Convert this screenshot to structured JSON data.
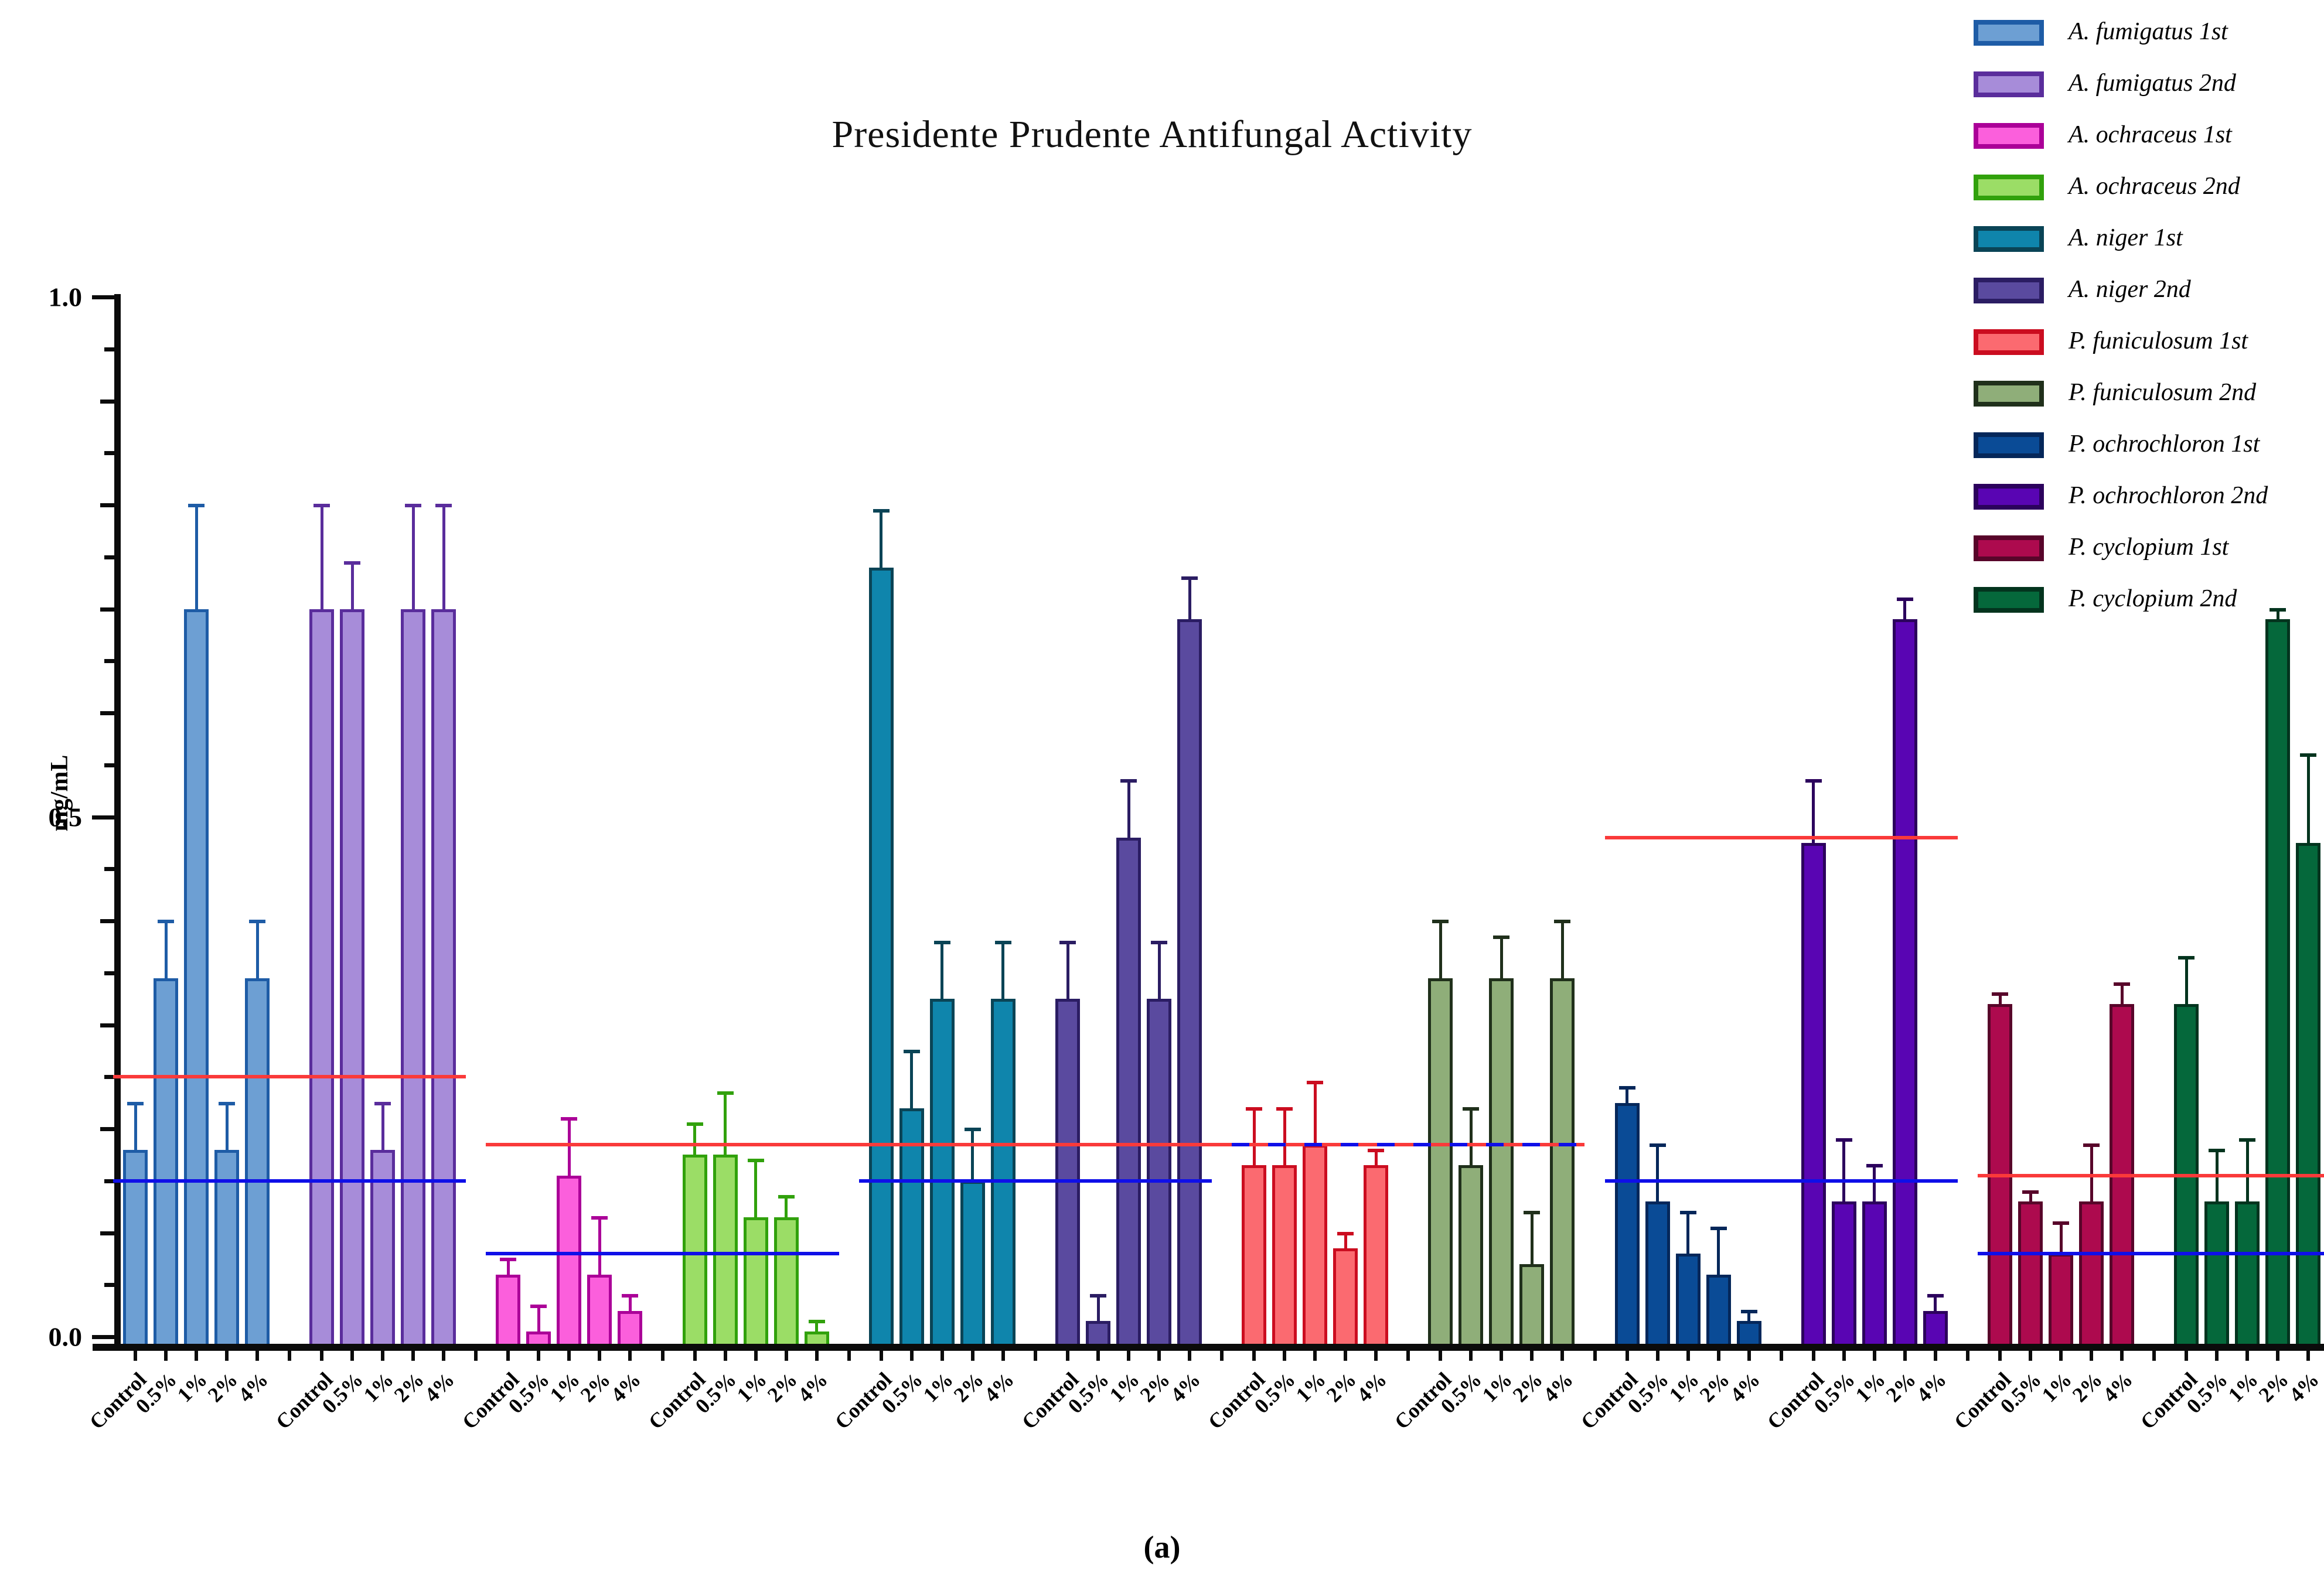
{
  "chart": {
    "title": "Presidente Prudente Antifungal Activity",
    "ylabel": "mg/mL",
    "caption": "(a)",
    "y_axis": {
      "min": 0.0,
      "max": 1.0,
      "major_tick_labels": [
        "0.0",
        "0.5",
        "1.0"
      ],
      "minor_step": 0.05
    }
  },
  "chart_data": {
    "type": "bar",
    "title": "Presidente Prudente Antifungal Activity",
    "xlabel": "",
    "ylabel": "mg/mL",
    "ylim": [
      0.0,
      1.0
    ],
    "grid": false,
    "legend_position": "right",
    "categories": [
      "Control",
      "0.5%",
      "1%",
      "2%",
      "4%"
    ],
    "series": [
      {
        "name": "A. fumigatus 1st",
        "fill": "#6D9FD3",
        "border": "#1E5CA6",
        "values": [
          0.18,
          0.345,
          0.7,
          0.18,
          0.345
        ],
        "errors": [
          0.045,
          0.055,
          0.1,
          0.045,
          0.055
        ]
      },
      {
        "name": "A. fumigatus 2nd",
        "fill": "#A78CD9",
        "border": "#5A2D9C",
        "values": [
          0.7,
          0.7,
          0.18,
          0.7,
          0.7
        ],
        "errors": [
          0.1,
          0.045,
          0.045,
          0.1,
          0.1
        ]
      },
      {
        "name": "A. ochraceus 1st",
        "fill": "#FB5FDC",
        "border": "#AB0098",
        "values": [
          0.06,
          0.005,
          0.155,
          0.06,
          0.025
        ],
        "errors": [
          0.015,
          0.025,
          0.055,
          0.055,
          0.015
        ]
      },
      {
        "name": "A. ochraceus 2nd",
        "fill": "#9BDD66",
        "border": "#31A10C",
        "values": [
          0.175,
          0.175,
          0.115,
          0.115,
          0.005
        ],
        "errors": [
          0.03,
          0.06,
          0.055,
          0.02,
          0.01
        ]
      },
      {
        "name": "A. niger 1st",
        "fill": "#0F85AC",
        "border": "#0A4456",
        "values": [
          0.74,
          0.22,
          0.325,
          0.15,
          0.325
        ],
        "errors": [
          0.055,
          0.055,
          0.055,
          0.05,
          0.055
        ]
      },
      {
        "name": "A. niger 2nd",
        "fill": "#5A4A9F",
        "border": "#2B1D63",
        "values": [
          0.325,
          0.015,
          0.48,
          0.325,
          0.69
        ],
        "errors": [
          0.055,
          0.025,
          0.055,
          0.055,
          0.04
        ]
      },
      {
        "name": "P. funiculosum 1st",
        "fill": "#FB6A70",
        "border": "#CB0D20",
        "values": [
          0.165,
          0.165,
          0.185,
          0.085,
          0.165
        ],
        "errors": [
          0.055,
          0.055,
          0.06,
          0.015,
          0.015
        ]
      },
      {
        "name": "P. funiculosum 2nd",
        "fill": "#8FAE79",
        "border": "#20301B",
        "values": [
          0.345,
          0.165,
          0.345,
          0.07,
          0.345
        ],
        "errors": [
          0.055,
          0.055,
          0.04,
          0.05,
          0.055
        ]
      },
      {
        "name": "P. ochrochloron 1st",
        "fill": "#0A4B96",
        "border": "#05275A",
        "values": [
          0.225,
          0.13,
          0.08,
          0.06,
          0.015
        ],
        "errors": [
          0.015,
          0.055,
          0.04,
          0.045,
          0.01
        ]
      },
      {
        "name": "P. ochrochloron 2nd",
        "fill": "#5905B3",
        "border": "#2C025D",
        "values": [
          0.475,
          0.13,
          0.13,
          0.69,
          0.025
        ],
        "errors": [
          0.06,
          0.06,
          0.035,
          0.02,
          0.015
        ]
      },
      {
        "name": "P. cyclopium 1st",
        "fill": "#AD0A4E",
        "border": "#58052A",
        "values": [
          0.32,
          0.13,
          0.08,
          0.13,
          0.32
        ],
        "errors": [
          0.01,
          0.01,
          0.03,
          0.055,
          0.02
        ]
      },
      {
        "name": "P. cyclopium 2nd",
        "fill": "#05683B",
        "border": "#03341E",
        "values": [
          0.32,
          0.13,
          0.13,
          0.69,
          0.475
        ],
        "errors": [
          0.045,
          0.05,
          0.06,
          0.01,
          0.085
        ]
      }
    ],
    "reference_lines": {
      "red_color": "#FA3A3A",
      "blue_color": "#0F0FE8",
      "red": [
        {
          "from_series": 0,
          "to_series": 1,
          "value": 0.25
        },
        {
          "from_series": 2,
          "to_series": 7,
          "value": 0.185
        },
        {
          "from_series": 8,
          "to_series": 9,
          "value": 0.48
        },
        {
          "from_series": 10,
          "to_series": 11,
          "value": 0.155
        }
      ],
      "blue": [
        {
          "from_series": 0,
          "to_series": 1,
          "value": 0.15
        },
        {
          "from_series": 2,
          "to_series": 3,
          "value": 0.08
        },
        {
          "from_series": 4,
          "to_series": 5,
          "value": 0.15
        },
        {
          "from_series": 6,
          "to_series": 7,
          "value": 0.185,
          "overlap_dashed": true
        },
        {
          "from_series": 8,
          "to_series": 9,
          "value": 0.15
        },
        {
          "from_series": 10,
          "to_series": 11,
          "value": 0.08
        }
      ]
    }
  }
}
